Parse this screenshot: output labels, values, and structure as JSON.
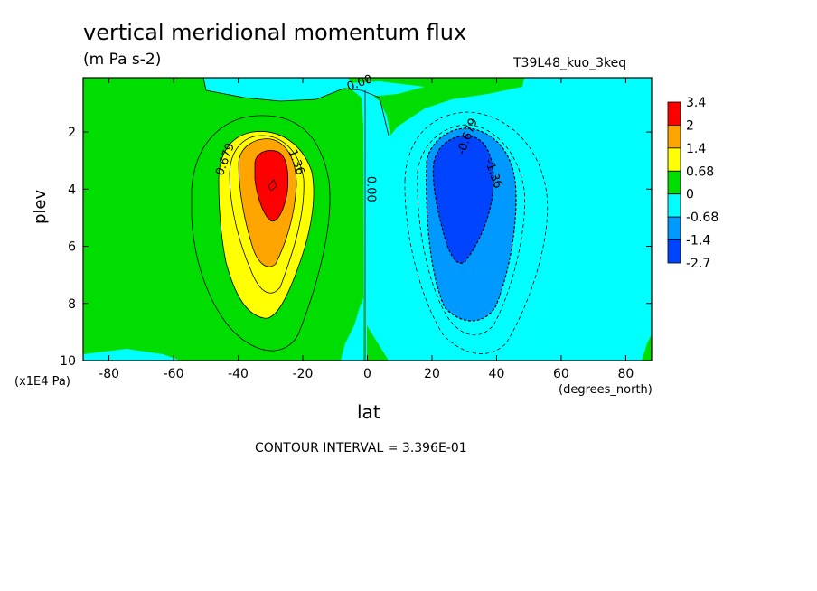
{
  "chart_data": {
    "type": "heatmap",
    "title": "vertical meridional momentum flux",
    "units": "(m Pa s-2)",
    "run_name": "T39L48_kuo_3keq",
    "xlabel": "lat",
    "xunits": "(degrees_north)",
    "ylabel": "plev",
    "yunits": "(x1E4 Pa)",
    "xlim": [
      -88,
      88
    ],
    "ylim": [
      10,
      0.1
    ],
    "x_ticks": [
      -80,
      -60,
      -40,
      -20,
      0,
      20,
      40,
      60,
      80
    ],
    "y_ticks": [
      2,
      4,
      6,
      8,
      10
    ],
    "contour_interval_text": "CONTOUR INTERVAL = 3.396E-01",
    "contour_labels": [
      {
        "text": "0.679",
        "lat": -43,
        "plev": 3.0
      },
      {
        "text": "1.36",
        "lat": -23,
        "plev": 3.1
      },
      {
        "text": "0.00",
        "lat": 0,
        "plev": 4.0
      },
      {
        "text": "0.00",
        "lat": -2,
        "plev": 0.4
      },
      {
        "text": "-0.679",
        "lat": 32,
        "plev": 2.2
      },
      {
        "text": "-1.36",
        "lat": 38,
        "plev": 3.5
      }
    ],
    "colorbar": {
      "levels": [
        "3.4",
        "2",
        "1.4",
        "0.68",
        "0",
        "-0.68",
        "-1.4",
        "-2.7"
      ],
      "colors": [
        "#ff0000",
        "#ffa500",
        "#ffff00",
        "#00dd00",
        "#00ffff",
        "#0099ff",
        "#0044ff"
      ]
    },
    "field": {
      "positive_peak": {
        "lat": -30,
        "plev": 4.0,
        "value": 3.4
      },
      "negative_peak": {
        "lat": 30,
        "plev": 4.0,
        "value": -2.7
      }
    }
  }
}
